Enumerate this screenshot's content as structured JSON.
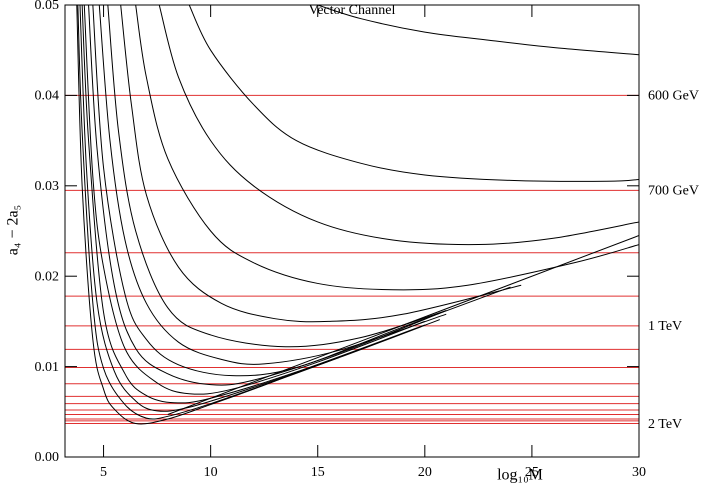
{
  "chart_data": {
    "type": "line",
    "title": "Vector Channel",
    "x_label": "log₁₀M",
    "y_label": "a₄ − 2a₅",
    "xlim": [
      3.2,
      30
    ],
    "ylim": [
      0,
      0.05
    ],
    "xticks": [
      5,
      10,
      15,
      20,
      25,
      30
    ],
    "yticks": [
      {
        "value": 0,
        "label": "0.00"
      },
      0.01,
      0.02,
      0.03,
      0.04,
      0.05
    ],
    "series": [
      {
        "color": "#000000",
        "x": [
          3.75,
          4,
          4.5,
          5,
          5.5,
          6.5,
          8,
          10,
          12,
          14
        ],
        "values": [
          0.05,
          0.03,
          0.013,
          0.0075,
          0.0053,
          0.0037,
          0.0042,
          0.0058,
          0.0075,
          0.0093
        ]
      },
      {
        "color": "#000000",
        "x": [
          3.8,
          4,
          4.5,
          5,
          6,
          7,
          8,
          10,
          13,
          16
        ],
        "values": [
          0.05,
          0.036,
          0.017,
          0.0098,
          0.0058,
          0.0043,
          0.0045,
          0.0059,
          0.0084,
          0.011
        ]
      },
      {
        "color": "#000000",
        "x": [
          3.9,
          4.2,
          4.7,
          5.5,
          6.5,
          7.5,
          9,
          12,
          16,
          20.7
        ],
        "values": [
          0.05,
          0.032,
          0.017,
          0.0095,
          0.0062,
          0.0051,
          0.0055,
          0.0077,
          0.011,
          0.0152
        ]
      },
      {
        "color": "#000000",
        "x": [
          4,
          4.3,
          5,
          6,
          7,
          8.3,
          10,
          14,
          20
        ],
        "values": [
          0.05,
          0.035,
          0.016,
          0.0092,
          0.0068,
          0.006,
          0.0065,
          0.0094,
          0.0146
        ]
      },
      {
        "color": "#000000",
        "x": [
          4.1,
          4.5,
          5,
          6,
          7.5,
          9,
          11,
          15,
          20
        ],
        "values": [
          0.05,
          0.031,
          0.021,
          0.012,
          0.0082,
          0.007,
          0.0075,
          0.0105,
          0.015
        ]
      },
      {
        "color": "#000000",
        "x": [
          4.3,
          4.7,
          5.5,
          6.5,
          8,
          10,
          12,
          16,
          21
        ],
        "values": [
          0.05,
          0.034,
          0.019,
          0.012,
          0.0092,
          0.008,
          0.0085,
          0.0115,
          0.0162
        ]
      },
      {
        "color": "#000000",
        "x": [
          4.5,
          5,
          6,
          7,
          8.5,
          11,
          14,
          19,
          24
        ],
        "values": [
          0.05,
          0.032,
          0.018,
          0.013,
          0.0102,
          0.009,
          0.0099,
          0.0144,
          0.0188
        ]
      },
      {
        "color": "#000000",
        "x": [
          4.8,
          5.3,
          6,
          7,
          8.5,
          10.5,
          12.5,
          16,
          21
        ],
        "values": [
          0.05,
          0.035,
          0.024,
          0.017,
          0.0127,
          0.0108,
          0.0103,
          0.0118,
          0.0158
        ]
      },
      {
        "color": "#000000",
        "x": [
          5.2,
          5.7,
          6.5,
          8,
          10,
          13.5,
          17,
          21
        ],
        "values": [
          0.05,
          0.036,
          0.025,
          0.0165,
          0.0135,
          0.0122,
          0.0132,
          0.0162
        ]
      },
      {
        "color": "#000000",
        "x": [
          5.8,
          6.3,
          7,
          8.5,
          10.5,
          13,
          15.5,
          19,
          24.5
        ],
        "values": [
          0.05,
          0.039,
          0.029,
          0.021,
          0.017,
          0.0153,
          0.015,
          0.0158,
          0.019
        ]
      },
      {
        "color": "#000000",
        "x": [
          6.5,
          7,
          8,
          10,
          12,
          15,
          18.5,
          22,
          27,
          30
        ],
        "values": [
          0.05,
          0.042,
          0.033,
          0.025,
          0.0215,
          0.0192,
          0.0185,
          0.019,
          0.0215,
          0.0235
        ]
      },
      {
        "color": "#000000",
        "x": [
          7.6,
          8.5,
          10,
          12,
          15,
          18.5,
          22.5,
          26,
          30
        ],
        "values": [
          0.05,
          0.042,
          0.035,
          0.03,
          0.026,
          0.024,
          0.0235,
          0.0242,
          0.026
        ]
      },
      {
        "color": "#000000",
        "x": [
          9,
          10,
          12,
          14,
          17,
          20,
          24,
          28.5,
          30
        ],
        "values": [
          0.05,
          0.045,
          0.039,
          0.035,
          0.0325,
          0.0312,
          0.0306,
          0.0305,
          0.0307
        ]
      },
      {
        "color": "#000000",
        "x": [
          15,
          17,
          20,
          23,
          26,
          30
        ],
        "values": [
          0.05,
          0.0485,
          0.047,
          0.0461,
          0.0453,
          0.0445
        ]
      },
      {
        "color": "#000000",
        "x": [
          8,
          30
        ],
        "values": [
          0.0047,
          0.0245
        ]
      }
    ],
    "hlines": {
      "color": "#e03030",
      "values": [
        0.04,
        0.0295,
        0.0226,
        0.0178,
        0.0145,
        0.0119,
        0.0099,
        0.0081,
        0.0067,
        0.0059,
        0.0052,
        0.0047,
        0.0042,
        0.004,
        0.0037
      ],
      "labels": [
        "600 GeV",
        "700 GeV",
        null,
        null,
        "1 TeV",
        null,
        null,
        null,
        null,
        null,
        null,
        null,
        null,
        null,
        "2 TeV"
      ]
    }
  }
}
